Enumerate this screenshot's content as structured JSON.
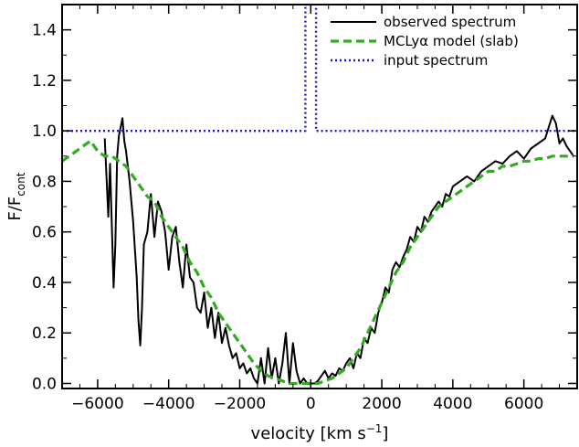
{
  "chart_data": {
    "type": "line",
    "xlabel": "velocity [km s",
    "xlabel_sup": "−1",
    "xlabel_tail": "]",
    "ylabel": "F/F",
    "ylabel_sub": "cont",
    "xlim": [
      -7000,
      7500
    ],
    "ylim": [
      -0.02,
      1.5
    ],
    "xticks": [
      -6000,
      -4000,
      -2000,
      0,
      2000,
      4000,
      6000
    ],
    "xtick_labels": [
      "−6000",
      "−4000",
      "−2000",
      "0",
      "2000",
      "4000",
      "6000"
    ],
    "yticks": [
      0.0,
      0.2,
      0.4,
      0.6,
      0.8,
      1.0,
      1.2,
      1.4
    ],
    "ytick_labels": [
      "0.0",
      "0.2",
      "0.4",
      "0.6",
      "0.8",
      "1.0",
      "1.2",
      "1.4"
    ],
    "legend_position": "top-right",
    "series": [
      {
        "name": "observed spectrum",
        "color": "#000000",
        "style": "solid",
        "x": [
          -5800,
          -5700,
          -5650,
          -5550,
          -5500,
          -5450,
          -5400,
          -5300,
          -5250,
          -5200,
          -5100,
          -5000,
          -4900,
          -4850,
          -4800,
          -4750,
          -4700,
          -4600,
          -4500,
          -4400,
          -4300,
          -4200,
          -4100,
          -4000,
          -3900,
          -3800,
          -3700,
          -3600,
          -3500,
          -3400,
          -3300,
          -3200,
          -3100,
          -3000,
          -2900,
          -2800,
          -2700,
          -2600,
          -2500,
          -2400,
          -2300,
          -2200,
          -2100,
          -2000,
          -1900,
          -1800,
          -1700,
          -1600,
          -1500,
          -1400,
          -1300,
          -1200,
          -1100,
          -1000,
          -900,
          -800,
          -700,
          -600,
          -500,
          -400,
          -300,
          -200,
          -100,
          0,
          100,
          200,
          300,
          400,
          500,
          600,
          700,
          800,
          900,
          1000,
          1100,
          1200,
          1300,
          1400,
          1500,
          1600,
          1700,
          1800,
          1900,
          2000,
          2100,
          2200,
          2300,
          2400,
          2500,
          2600,
          2700,
          2800,
          2900,
          3000,
          3100,
          3200,
          3300,
          3400,
          3500,
          3600,
          3700,
          3800,
          3900,
          4000,
          4200,
          4400,
          4600,
          4800,
          5000,
          5200,
          5400,
          5600,
          5800,
          6000,
          6200,
          6400,
          6600,
          6800,
          6900,
          7000,
          7100,
          7200,
          7300,
          7400
        ],
        "y": [
          0.97,
          0.66,
          0.87,
          0.38,
          0.55,
          0.9,
          0.98,
          1.05,
          0.96,
          0.92,
          0.8,
          0.64,
          0.42,
          0.25,
          0.15,
          0.3,
          0.55,
          0.6,
          0.75,
          0.58,
          0.72,
          0.68,
          0.6,
          0.45,
          0.58,
          0.62,
          0.48,
          0.38,
          0.55,
          0.42,
          0.4,
          0.3,
          0.28,
          0.36,
          0.22,
          0.3,
          0.18,
          0.28,
          0.16,
          0.22,
          0.15,
          0.1,
          0.12,
          0.06,
          0.08,
          0.04,
          0.06,
          0.02,
          0.0,
          0.1,
          0.0,
          0.14,
          0.02,
          0.1,
          0.0,
          0.08,
          0.2,
          0.0,
          0.16,
          0.05,
          0.0,
          0.02,
          0.0,
          0.0,
          0.0,
          0.01,
          0.03,
          0.05,
          0.02,
          0.04,
          0.03,
          0.06,
          0.05,
          0.08,
          0.1,
          0.06,
          0.12,
          0.1,
          0.18,
          0.16,
          0.22,
          0.2,
          0.28,
          0.32,
          0.38,
          0.36,
          0.45,
          0.48,
          0.46,
          0.5,
          0.53,
          0.58,
          0.56,
          0.62,
          0.6,
          0.66,
          0.64,
          0.68,
          0.7,
          0.72,
          0.7,
          0.75,
          0.74,
          0.78,
          0.8,
          0.82,
          0.8,
          0.84,
          0.86,
          0.88,
          0.87,
          0.9,
          0.92,
          0.89,
          0.93,
          0.95,
          0.97,
          1.06,
          1.03,
          0.95,
          0.97,
          0.94,
          0.92,
          0.9
        ]
      },
      {
        "name": "MCLyα model (slab)",
        "color": "#33aa22",
        "style": "dashed",
        "x": [
          -7000,
          -6800,
          -6600,
          -6400,
          -6200,
          -6000,
          -5800,
          -5600,
          -5400,
          -5200,
          -5000,
          -4800,
          -4600,
          -4400,
          -4200,
          -4000,
          -3800,
          -3600,
          -3400,
          -3200,
          -3000,
          -2800,
          -2600,
          -2400,
          -2200,
          -2000,
          -1800,
          -1600,
          -1400,
          -1200,
          -1000,
          -800,
          -600,
          -400,
          -200,
          0,
          200,
          400,
          600,
          800,
          1000,
          1200,
          1400,
          1600,
          1800,
          2000,
          2200,
          2400,
          2600,
          2800,
          3000,
          3200,
          3400,
          3600,
          3800,
          4000,
          4200,
          4400,
          4600,
          4800,
          5000,
          5200,
          5400,
          5600,
          5800,
          6000,
          6200,
          6400,
          6600,
          6800,
          7000,
          7200,
          7400
        ],
        "y": [
          0.88,
          0.9,
          0.92,
          0.94,
          0.96,
          0.92,
          0.9,
          0.9,
          0.88,
          0.86,
          0.82,
          0.78,
          0.74,
          0.72,
          0.66,
          0.62,
          0.58,
          0.54,
          0.48,
          0.44,
          0.38,
          0.34,
          0.28,
          0.24,
          0.2,
          0.16,
          0.12,
          0.08,
          0.05,
          0.03,
          0.02,
          0.01,
          0.0,
          0.0,
          0.0,
          0.0,
          0.0,
          0.01,
          0.02,
          0.04,
          0.06,
          0.1,
          0.14,
          0.2,
          0.26,
          0.32,
          0.38,
          0.44,
          0.48,
          0.54,
          0.58,
          0.62,
          0.66,
          0.7,
          0.72,
          0.74,
          0.76,
          0.78,
          0.8,
          0.82,
          0.84,
          0.84,
          0.86,
          0.86,
          0.87,
          0.88,
          0.88,
          0.89,
          0.89,
          0.9,
          0.9,
          0.9,
          0.9
        ]
      },
      {
        "name": "input spectrum",
        "color": "#1a1acc",
        "style": "dotted",
        "x": [
          -7000,
          -150,
          -150,
          150,
          150,
          7500
        ],
        "y": [
          1.0,
          1.0,
          1.5,
          1.5,
          1.0,
          1.0
        ]
      }
    ]
  }
}
